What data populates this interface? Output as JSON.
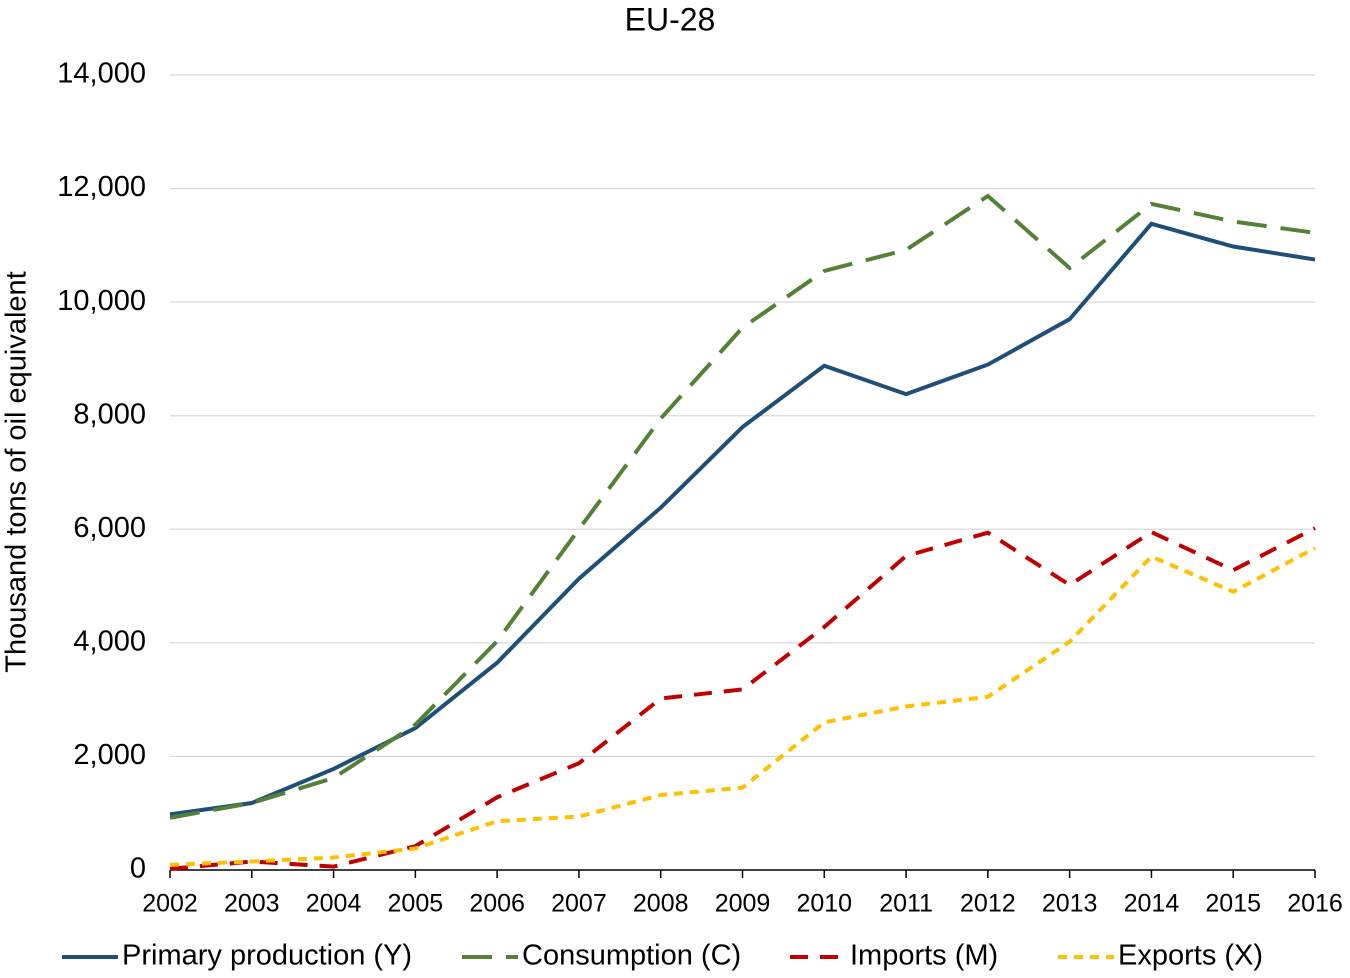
{
  "chart_data": {
    "type": "line",
    "title": "EU-28",
    "y_label": "Thousand tons of oil equivalent",
    "x": [
      2002,
      2003,
      2004,
      2005,
      2006,
      2007,
      2008,
      2009,
      2010,
      2011,
      2012,
      2013,
      2014,
      2015,
      2016
    ],
    "xlim": [
      2002,
      2016
    ],
    "xticks": [
      2002,
      2003,
      2004,
      2005,
      2006,
      2007,
      2008,
      2009,
      2010,
      2011,
      2012,
      2013,
      2014,
      2015,
      2016
    ],
    "ylim": [
      0,
      14000
    ],
    "yticks": [
      0,
      {
        "value": 2000,
        "label": "2,000"
      },
      {
        "value": 4000,
        "label": "4,000"
      },
      {
        "value": 6000,
        "label": "6,000"
      },
      {
        "value": 8000,
        "label": "8,000"
      },
      {
        "value": 10000,
        "label": "10,000"
      },
      {
        "value": 12000,
        "label": "12,000"
      },
      {
        "value": 14000,
        "label": "14,000"
      }
    ],
    "grid": true,
    "legend": "bottom",
    "series": [
      {
        "name": "Primary production (Y)",
        "color": "#1f4e79",
        "line_style": "solid",
        "values": [
          980,
          1180,
          1780,
          2500,
          3650,
          5130,
          6380,
          7800,
          8880,
          8380,
          8900,
          9700,
          11380,
          10980,
          10750
        ]
      },
      {
        "name": "Consumption (C)",
        "color": "#538135",
        "line_style": "long-dash",
        "values": [
          920,
          1180,
          1620,
          2560,
          4030,
          6000,
          7950,
          9550,
          10550,
          10920,
          11870,
          10600,
          11730,
          11420,
          11220
        ]
      },
      {
        "name": "Imports (M)",
        "color": "#c00000",
        "line_style": "dash",
        "values": [
          20,
          150,
          60,
          420,
          1280,
          1880,
          3020,
          3180,
          4280,
          5530,
          5940,
          5020,
          5950,
          5280,
          6020
        ]
      },
      {
        "name": "Exports (X)",
        "color": "#ffc000",
        "line_style": "short-dash",
        "values": [
          90,
          150,
          220,
          380,
          860,
          940,
          1320,
          1450,
          2600,
          2880,
          3050,
          4020,
          5520,
          4900,
          5670
        ]
      }
    ]
  }
}
